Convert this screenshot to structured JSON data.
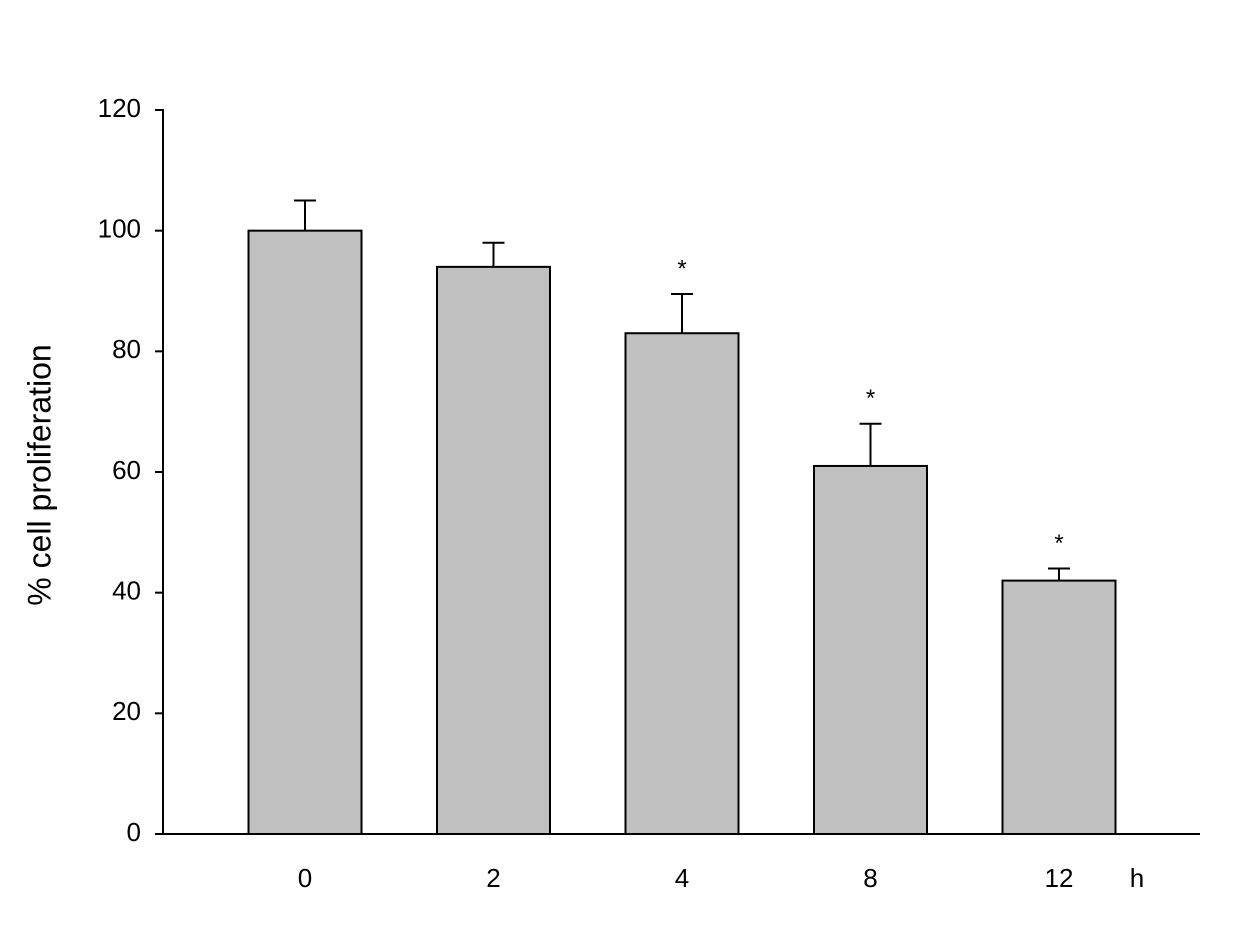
{
  "chart_data": {
    "type": "bar",
    "y_label": "% cell proliferation",
    "x_label": "h",
    "categories": [
      "0",
      "2",
      "4",
      "8",
      "12"
    ],
    "values": [
      100,
      94,
      83,
      61,
      42
    ],
    "errors": [
      5,
      4,
      6.5,
      7,
      2
    ],
    "annotations": [
      null,
      null,
      "*",
      "*",
      "*"
    ],
    "color": "#c0c0c0",
    "ylim": [
      0,
      120
    ],
    "yticks": [
      0,
      20,
      40,
      60,
      80,
      100,
      120
    ],
    "grid": false
  }
}
